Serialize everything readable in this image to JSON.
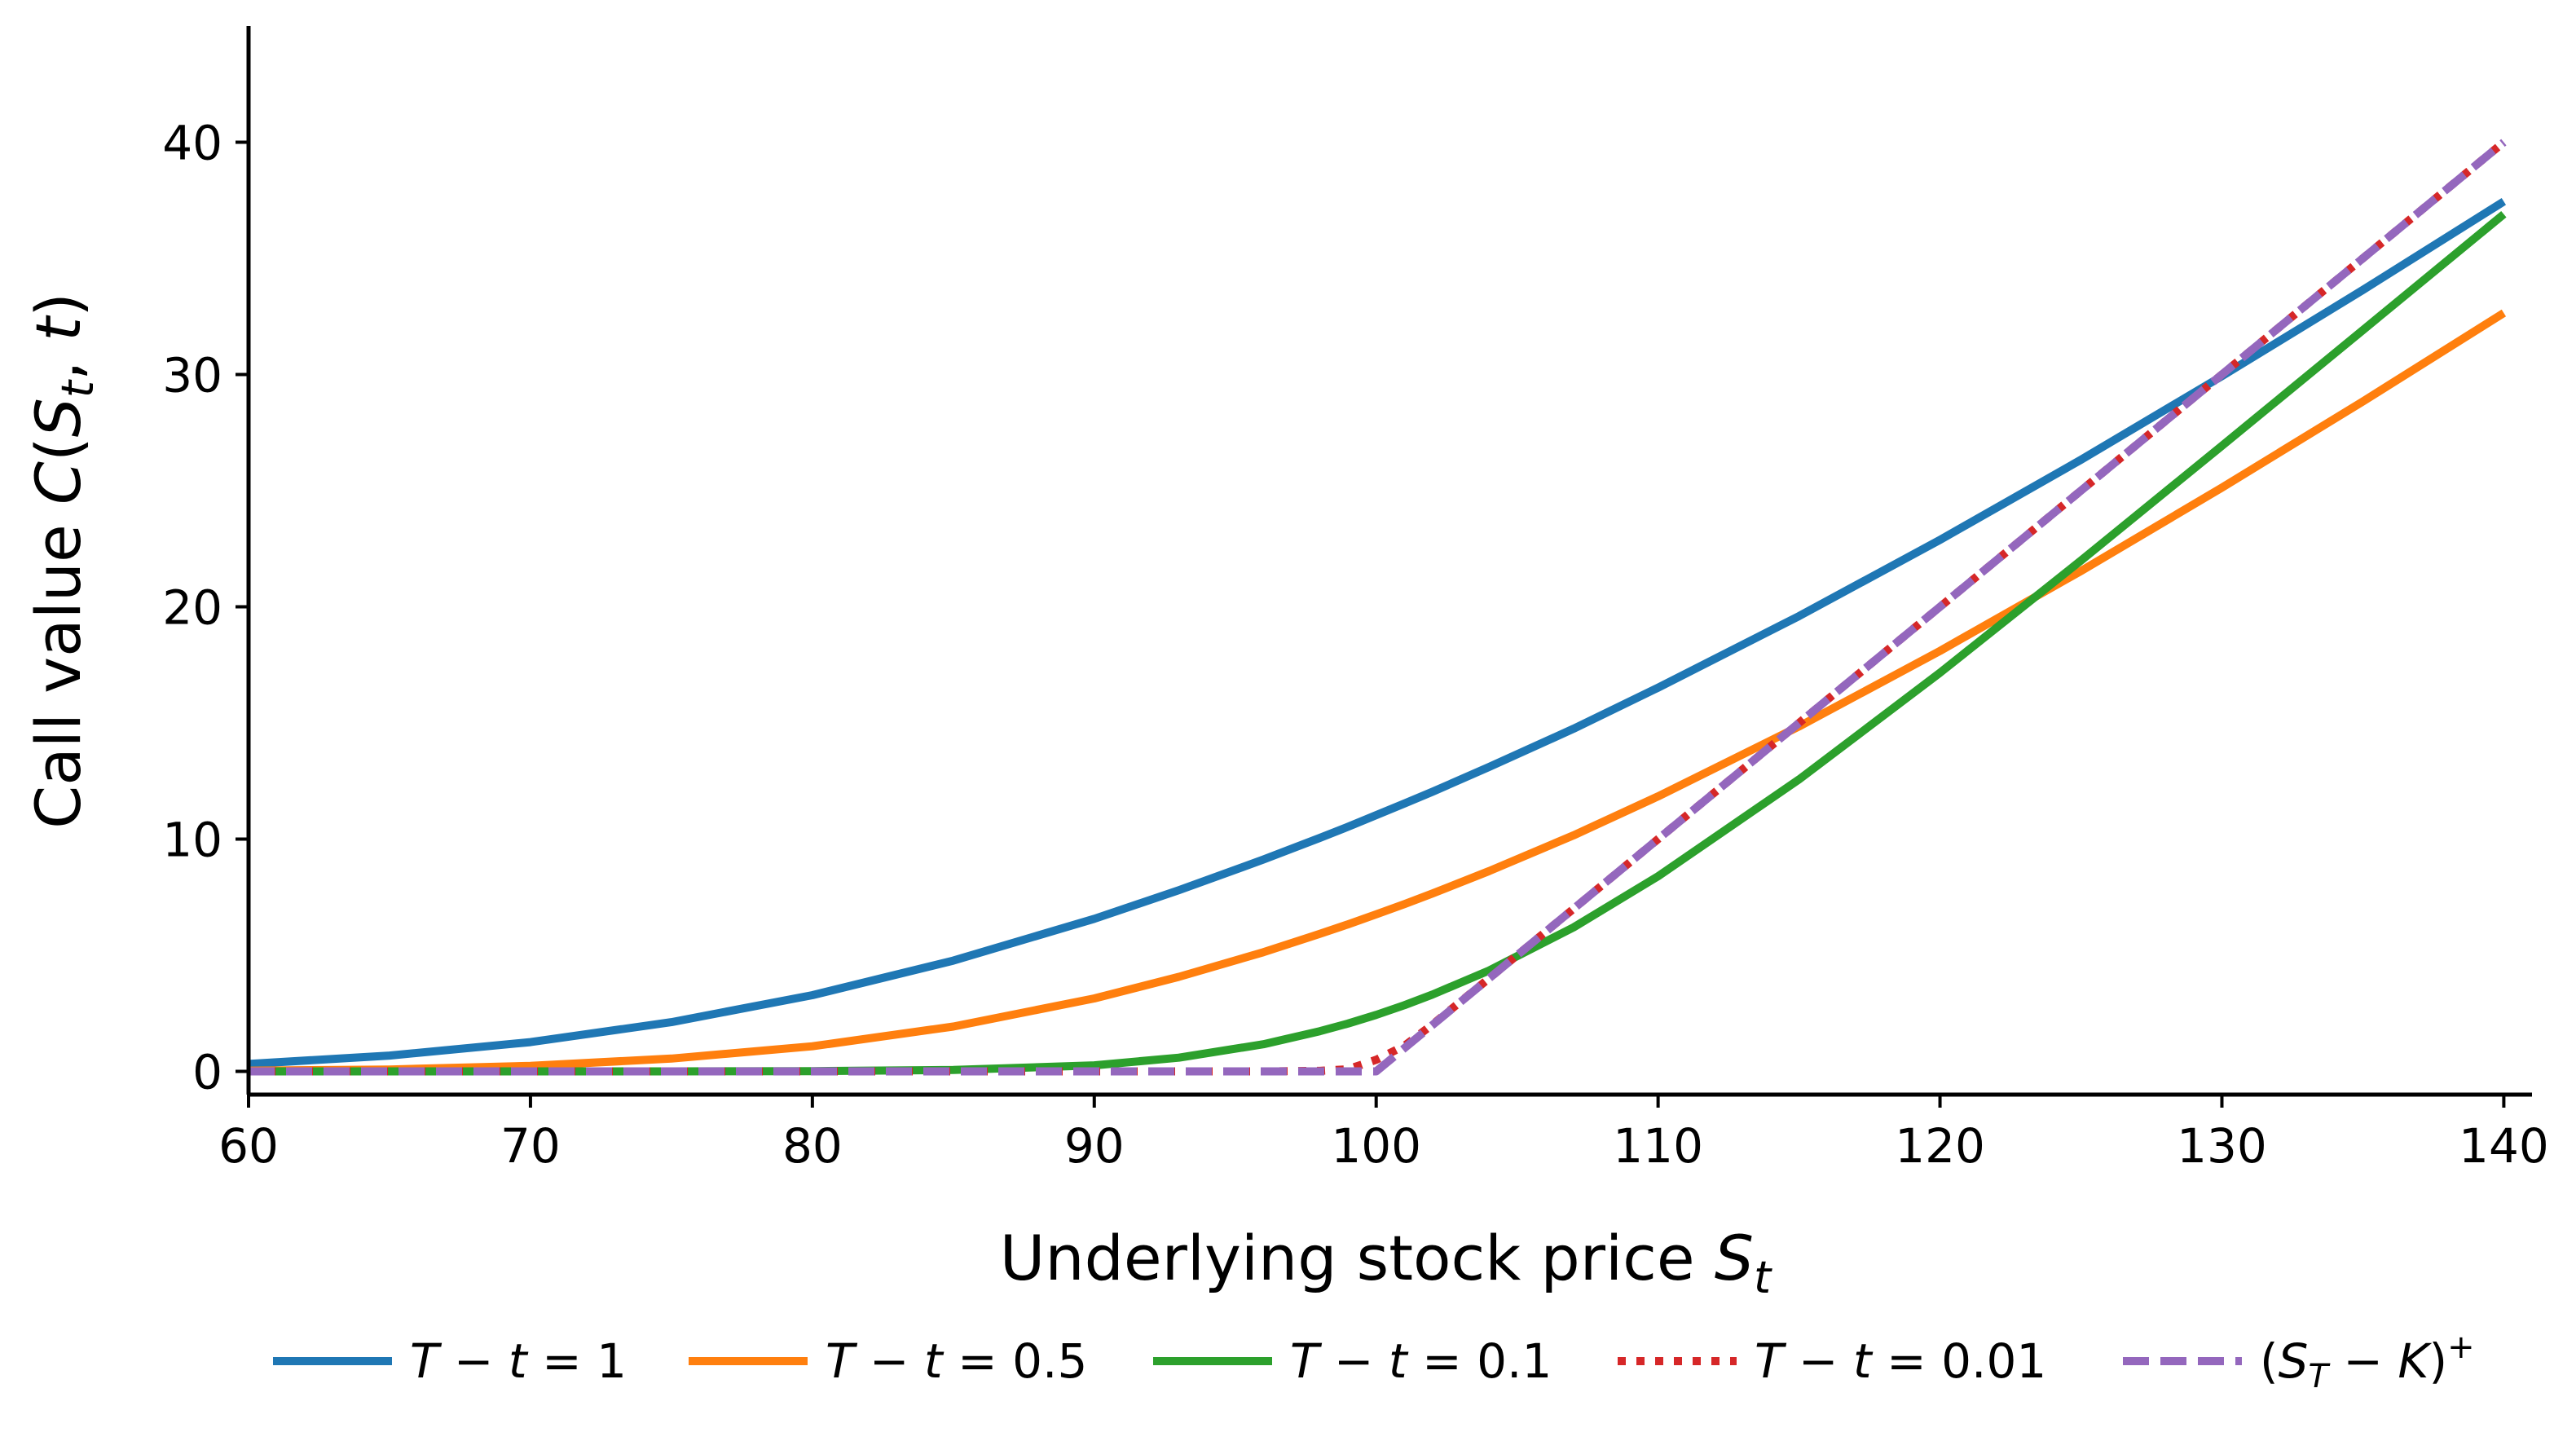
{
  "chart_data": {
    "type": "line",
    "title": "",
    "xlim": [
      60,
      141
    ],
    "ylim": [
      -1,
      45
    ],
    "grid": false,
    "xticks": [
      60,
      70,
      80,
      90,
      100,
      110,
      120,
      130,
      140
    ],
    "yticks": [
      0,
      10,
      20,
      30,
      40
    ],
    "xtick_labels": [
      "60",
      "70",
      "80",
      "90",
      "100",
      "110",
      "120",
      "130",
      "140"
    ],
    "ytick_labels": [
      "0",
      "10",
      "20",
      "30",
      "40"
    ],
    "xlabel": {
      "prefix": "Underlying stock price ",
      "symbol": "S",
      "sub": "t"
    },
    "ylabel": {
      "prefix": "Call value ",
      "func": "C",
      "symbol": "S",
      "sub": "t",
      "arg": "t"
    },
    "legend_placement": "bottom-center",
    "x": [
      60,
      65,
      70,
      75,
      80,
      85,
      90,
      93,
      96,
      98,
      99,
      100,
      101,
      102,
      104,
      107,
      110,
      115,
      120,
      125,
      130,
      135,
      140
    ],
    "series": [
      {
        "name": "T − t = 1",
        "label_parts": [
          "T",
          " − ",
          "t",
          " = 1"
        ],
        "color": "#1f77b4",
        "style": "solid",
        "values": [
          0.32,
          0.68,
          1.26,
          2.12,
          3.28,
          4.77,
          6.57,
          7.8,
          9.12,
          10.05,
          10.53,
          11.03,
          11.53,
          12.04,
          13.1,
          14.75,
          16.52,
          19.6,
          22.88,
          26.33,
          29.93,
          33.64,
          37.45
        ]
      },
      {
        "name": "T − t = 0.5",
        "label_parts": [
          "T",
          " − ",
          "t",
          " = 0.5"
        ],
        "color": "#ff7f0e",
        "style": "solid",
        "values": [
          0.03,
          0.08,
          0.24,
          0.55,
          1.08,
          1.93,
          3.14,
          4.07,
          5.13,
          5.92,
          6.33,
          6.76,
          7.2,
          7.66,
          8.62,
          10.16,
          11.84,
          14.85,
          18.1,
          21.54,
          25.13,
          28.84,
          32.65
        ]
      },
      {
        "name": "T − t = 0.1",
        "label_parts": [
          "T",
          " − ",
          "t",
          " = 0.1"
        ],
        "color": "#2ca02c",
        "style": "solid",
        "values": [
          0.0,
          0.0,
          0.0,
          0.0,
          0.01,
          0.06,
          0.26,
          0.59,
          1.17,
          1.73,
          2.06,
          2.43,
          2.85,
          3.31,
          4.34,
          6.2,
          8.4,
          12.57,
          17.16,
          21.99,
          26.93,
          31.91,
          36.9
        ]
      },
      {
        "name": "T − t = 0.01",
        "label_parts": [
          "T",
          " − ",
          "t",
          " = 0.01"
        ],
        "color": "#d62728",
        "style": "dotted",
        "values": [
          0.0,
          0.0,
          0.0,
          0.0,
          0.0,
          0.0,
          0.0,
          0.0,
          0.0,
          0.02,
          0.09,
          0.5,
          1.1,
          2.02,
          4.0,
          7.0,
          10.0,
          15.0,
          20.0,
          25.0,
          30.0,
          35.0,
          40.0
        ]
      },
      {
        "name": "(S_T − K)+",
        "label_parts": [
          "(",
          "S",
          "T",
          " − ",
          "K",
          ")",
          "+"
        ],
        "color": "#9467bd",
        "style": "dashed",
        "values": [
          0,
          0,
          0,
          0,
          0,
          0,
          0,
          0,
          0,
          0,
          0,
          0,
          1,
          2,
          4,
          7,
          10,
          15,
          20,
          25,
          30,
          35,
          40
        ]
      }
    ]
  }
}
